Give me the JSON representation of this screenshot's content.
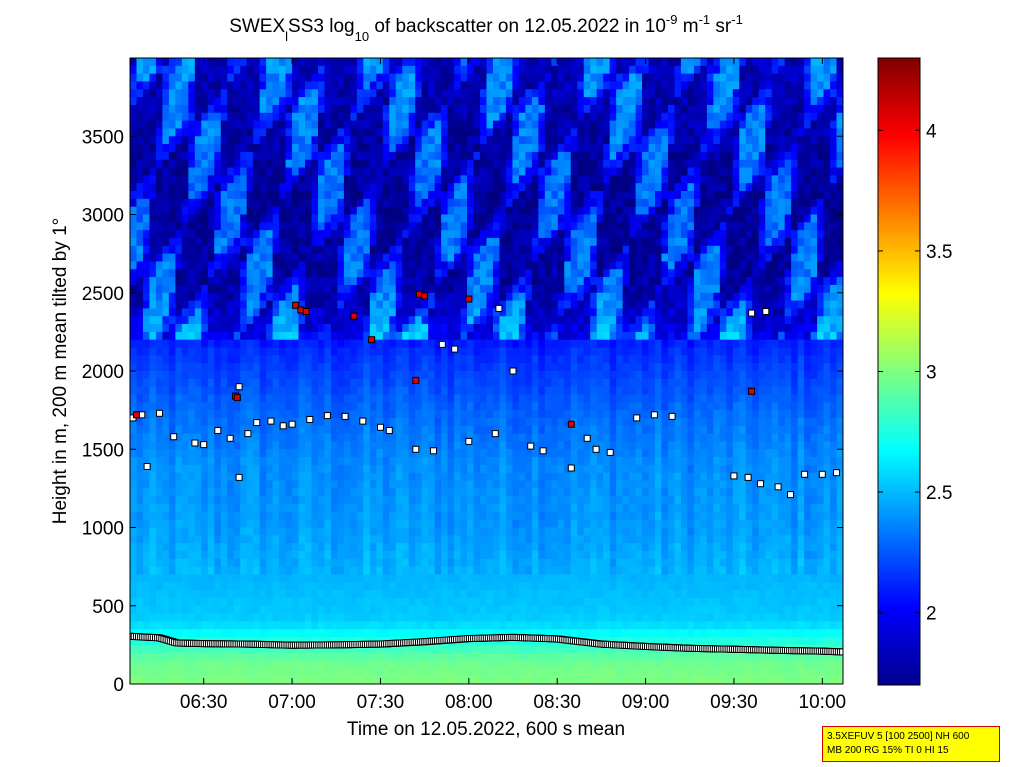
{
  "chart_data": {
    "type": "heatmap",
    "title": {
      "prefix": "SWEX",
      "subscript_l": "l",
      "mid": "SS3 log",
      "subscript_10": "10",
      "rest": " of backscatter on 12.05.2022 in 10",
      "sup_m9": "-9",
      "unit_m": " m",
      "sup_m1": "-1",
      "unit_sr": " sr",
      "sup_m1_b": "-1"
    },
    "xlabel": "Time on 12.05.2022, 600 s mean",
    "ylabel": "Height in m, 200 m mean tilted by 1°",
    "x_range_hours": [
      6.083,
      10.117
    ],
    "ylim": [
      0,
      4000
    ],
    "x_ticks": [
      {
        "value": 6.5,
        "label": "06:30"
      },
      {
        "value": 7.0,
        "label": "07:00"
      },
      {
        "value": 7.5,
        "label": "07:30"
      },
      {
        "value": 8.0,
        "label": "08:00"
      },
      {
        "value": 8.5,
        "label": "08:30"
      },
      {
        "value": 9.0,
        "label": "09:00"
      },
      {
        "value": 9.5,
        "label": "09:30"
      },
      {
        "value": 10.0,
        "label": "10:00"
      }
    ],
    "y_ticks": [
      {
        "value": 0,
        "label": "0"
      },
      {
        "value": 500,
        "label": "500"
      },
      {
        "value": 1000,
        "label": "1000"
      },
      {
        "value": 1500,
        "label": "1500"
      },
      {
        "value": 2000,
        "label": "2000"
      },
      {
        "value": 2500,
        "label": "2500"
      },
      {
        "value": 3000,
        "label": "3000"
      },
      {
        "value": 3500,
        "label": "3500"
      }
    ],
    "colorbar": {
      "range": [
        1.7,
        4.3
      ],
      "ticks": [
        {
          "value": 2.0,
          "label": "2"
        },
        {
          "value": 2.5,
          "label": "2.5"
        },
        {
          "value": 3.0,
          "label": "3"
        },
        {
          "value": 3.5,
          "label": "3.5"
        },
        {
          "value": 4.0,
          "label": "4"
        }
      ],
      "colormap": "jet"
    },
    "backscatter_profile": {
      "description_levels": [
        {
          "height": 0,
          "value": 3.0
        },
        {
          "height": 150,
          "value": 2.95
        },
        {
          "height": 250,
          "value": 2.8
        },
        {
          "height": 400,
          "value": 2.55
        },
        {
          "height": 700,
          "value": 2.48
        },
        {
          "height": 1000,
          "value": 2.42
        },
        {
          "height": 1400,
          "value": 2.38
        },
        {
          "height": 1700,
          "value": 2.3
        },
        {
          "height": 2100,
          "value": 2.15
        },
        {
          "height": 2500,
          "value": 1.9
        },
        {
          "height": 3000,
          "value": 1.85
        },
        {
          "height": 3500,
          "value": 1.9
        },
        {
          "height": 4000,
          "value": 1.95
        }
      ]
    },
    "boundary_layer_height": [
      {
        "t": 6.08,
        "h": 305
      },
      {
        "t": 6.25,
        "h": 295
      },
      {
        "t": 6.35,
        "h": 262
      },
      {
        "t": 6.5,
        "h": 258
      },
      {
        "t": 6.75,
        "h": 255
      },
      {
        "t": 7.0,
        "h": 248
      },
      {
        "t": 7.25,
        "h": 250
      },
      {
        "t": 7.5,
        "h": 255
      },
      {
        "t": 7.75,
        "h": 270
      },
      {
        "t": 8.0,
        "h": 290
      },
      {
        "t": 8.25,
        "h": 298
      },
      {
        "t": 8.5,
        "h": 288
      },
      {
        "t": 8.75,
        "h": 255
      },
      {
        "t": 9.0,
        "h": 240
      },
      {
        "t": 9.25,
        "h": 228
      },
      {
        "t": 9.5,
        "h": 222
      },
      {
        "t": 9.75,
        "h": 215
      },
      {
        "t": 10.0,
        "h": 210
      },
      {
        "t": 10.11,
        "h": 205
      }
    ],
    "cloud_layer_markers": [
      {
        "t": 6.1,
        "h": 1700
      },
      {
        "t": 6.15,
        "h": 1720
      },
      {
        "t": 6.18,
        "h": 1390
      },
      {
        "t": 6.25,
        "h": 1730
      },
      {
        "t": 6.33,
        "h": 1580
      },
      {
        "t": 6.45,
        "h": 1540
      },
      {
        "t": 6.5,
        "h": 1530
      },
      {
        "t": 6.58,
        "h": 1620
      },
      {
        "t": 6.65,
        "h": 1570
      },
      {
        "t": 6.7,
        "h": 1320
      },
      {
        "t": 6.75,
        "h": 1600
      },
      {
        "t": 6.8,
        "h": 1670
      },
      {
        "t": 6.88,
        "h": 1680
      },
      {
        "t": 6.95,
        "h": 1650
      },
      {
        "t": 7.0,
        "h": 1660
      },
      {
        "t": 7.1,
        "h": 1690
      },
      {
        "t": 7.2,
        "h": 1715
      },
      {
        "t": 7.3,
        "h": 1710
      },
      {
        "t": 7.4,
        "h": 1680
      },
      {
        "t": 7.5,
        "h": 1640
      },
      {
        "t": 7.55,
        "h": 1620
      },
      {
        "t": 7.7,
        "h": 1500
      },
      {
        "t": 7.8,
        "h": 1490
      },
      {
        "t": 7.92,
        "h": 2140
      },
      {
        "t": 7.85,
        "h": 2170
      },
      {
        "t": 8.0,
        "h": 1550
      },
      {
        "t": 8.15,
        "h": 1600
      },
      {
        "t": 8.25,
        "h": 2000
      },
      {
        "t": 8.35,
        "h": 1520
      },
      {
        "t": 8.42,
        "h": 1490
      },
      {
        "t": 8.58,
        "h": 1380
      },
      {
        "t": 8.67,
        "h": 1570
      },
      {
        "t": 8.72,
        "h": 1500
      },
      {
        "t": 8.8,
        "h": 1480
      },
      {
        "t": 8.95,
        "h": 1700
      },
      {
        "t": 9.05,
        "h": 1720
      },
      {
        "t": 9.15,
        "h": 1710
      },
      {
        "t": 9.5,
        "h": 1330
      },
      {
        "t": 9.58,
        "h": 1320
      },
      {
        "t": 9.65,
        "h": 1280
      },
      {
        "t": 9.75,
        "h": 1260
      },
      {
        "t": 9.82,
        "h": 1210
      },
      {
        "t": 9.9,
        "h": 1340
      },
      {
        "t": 10.0,
        "h": 1340
      },
      {
        "t": 10.08,
        "h": 1350
      },
      {
        "t": 9.6,
        "h": 2370
      },
      {
        "t": 9.68,
        "h": 2380
      },
      {
        "t": 8.17,
        "h": 2400
      },
      {
        "t": 6.7,
        "h": 1900
      }
    ],
    "high_value_markers": [
      {
        "t": 6.12,
        "h": 1720
      },
      {
        "t": 6.68,
        "h": 1840
      },
      {
        "t": 6.69,
        "h": 1830
      },
      {
        "t": 7.02,
        "h": 2420
      },
      {
        "t": 7.05,
        "h": 2390
      },
      {
        "t": 7.08,
        "h": 2380
      },
      {
        "t": 7.35,
        "h": 2350
      },
      {
        "t": 7.45,
        "h": 2200
      },
      {
        "t": 7.7,
        "h": 1940
      },
      {
        "t": 7.72,
        "h": 2490
      },
      {
        "t": 7.75,
        "h": 2480
      },
      {
        "t": 8.0,
        "h": 2460
      },
      {
        "t": 8.58,
        "h": 1660
      },
      {
        "t": 9.6,
        "h": 1870
      }
    ]
  },
  "settings_box": {
    "line1": "3.5XEFUV 5 [100 2500] NH 600",
    "line2": "MB 200 RG 15% TI 0 HI 15"
  }
}
